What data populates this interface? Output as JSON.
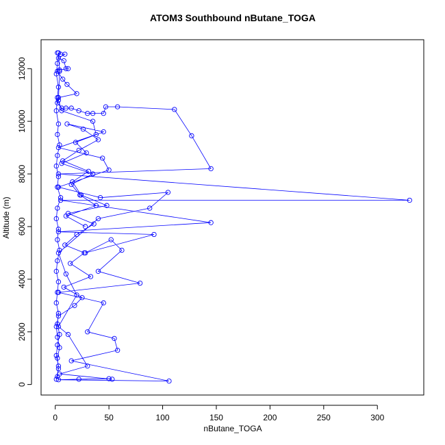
{
  "chart_data": {
    "type": "line",
    "title": "ATOM3 Southbound nButane_TOGA",
    "x_label": "nButane_TOGA",
    "y_label": "Altitude (m)",
    "color": "#0000ff",
    "marker": "open-circle",
    "xlim": [
      -13.2,
      343.2
    ],
    "ylim": [
      -400,
      13100
    ],
    "xticks": [
      0,
      50,
      100,
      150,
      200,
      250,
      300
    ],
    "yticks": [
      0,
      2000,
      4000,
      6000,
      8000,
      10000,
      12000
    ],
    "x": [
      2,
      5,
      9,
      3,
      8,
      10,
      12,
      4,
      2,
      7,
      11,
      20,
      3,
      2,
      6,
      10,
      15,
      22,
      30,
      35,
      45,
      47,
      58,
      111,
      127,
      145,
      3,
      330,
      5,
      145,
      3,
      92,
      28,
      52,
      62,
      40,
      79,
      3,
      45,
      30,
      55,
      58,
      15,
      106,
      3,
      22,
      50,
      53,
      4,
      30,
      12,
      3,
      20,
      10,
      3,
      40,
      88,
      105,
      42,
      3,
      50,
      44,
      3,
      38,
      35,
      6,
      3,
      4,
      3,
      2,
      1,
      3,
      2,
      1,
      3,
      2,
      4,
      2,
      1,
      3,
      2,
      5,
      2,
      1,
      3,
      2,
      4,
      2,
      1,
      3,
      2,
      1,
      3,
      2,
      4,
      2,
      1,
      3,
      2,
      1,
      3,
      2,
      4,
      2,
      1,
      3,
      18,
      25,
      8,
      33,
      14,
      27,
      9,
      20,
      36,
      12,
      48,
      24,
      16,
      31,
      7,
      22,
      40,
      26,
      11,
      45,
      19,
      29,
      6,
      35,
      15,
      23,
      38,
      10,
      28
    ],
    "values": [
      12600,
      12550,
      12550,
      12400,
      12300,
      12000,
      12000,
      11950,
      11900,
      11600,
      11400,
      11050,
      10900,
      10700,
      10500,
      10500,
      10500,
      10400,
      10300,
      10300,
      10300,
      10550,
      10550,
      10450,
      9450,
      8200,
      8000,
      7000,
      7000,
      6150,
      5800,
      5700,
      5000,
      5500,
      5100,
      4300,
      3850,
      3500,
      3100,
      2000,
      1750,
      1300,
      900,
      130,
      180,
      200,
      220,
      200,
      400,
      700,
      1900,
      2200,
      3400,
      4200,
      5000,
      6300,
      6700,
      7300,
      7100,
      7500,
      8150,
      8600,
      9000,
      9500,
      10000,
      10400,
      10800,
      11900,
      12600,
      12200,
      11800,
      11300,
      10900,
      10400,
      9900,
      9500,
      9100,
      8700,
      8300,
      7900,
      7500,
      7100,
      6700,
      6300,
      5900,
      5500,
      5100,
      4700,
      4300,
      3900,
      3500,
      3100,
      2700,
      2300,
      1900,
      1500,
      1100,
      700,
      300,
      200,
      600,
      1000,
      1400,
      1800,
      2200,
      2600,
      3000,
      3300,
      3700,
      4100,
      4600,
      5000,
      5300,
      5700,
      6100,
      6500,
      6800,
      7200,
      7700,
      8100,
      8500,
      8900,
      9300,
      9700,
      9900,
      9600,
      9200,
      8800,
      8400,
      8000,
      7600,
      7200,
      6800,
      6400,
      6000
    ]
  }
}
